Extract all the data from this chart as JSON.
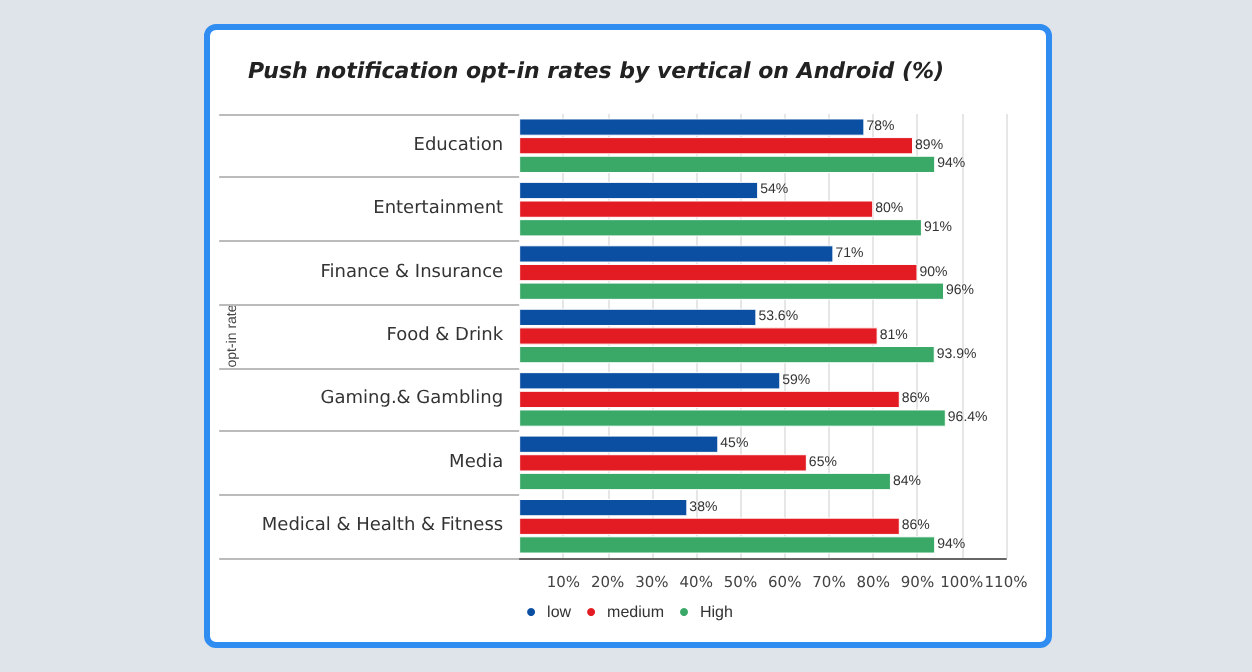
{
  "chart_data": {
    "type": "bar",
    "orientation": "horizontal",
    "title": "Push notification opt-in rates by vertical on Android (%)",
    "ylabel": "opt-in rate",
    "categories": [
      "Education",
      "Entertainment",
      "Finance & Insurance",
      "Food & Drink",
      "Gaming.& Gambling",
      "Media",
      "Medical & Health & Fitness"
    ],
    "series": [
      {
        "name": "low",
        "color": "#0b4fa2",
        "values": [
          78,
          54,
          71,
          53.6,
          59,
          45,
          38
        ],
        "value_labels": [
          "78%",
          "54%",
          "71%",
          "53.6%",
          "59%",
          "45%",
          "38%"
        ]
      },
      {
        "name": "medium",
        "color": "#e31b23",
        "values": [
          89,
          80,
          90,
          81,
          86,
          65,
          86
        ],
        "value_labels": [
          "89%",
          "80%",
          "90%",
          "81%",
          "86%",
          "65%",
          "86%"
        ]
      },
      {
        "name": "High",
        "color": "#3aa866",
        "values": [
          94,
          91,
          96,
          93.9,
          96.4,
          84,
          94
        ],
        "value_labels": [
          "94%",
          "91%",
          "96%",
          "93.9%",
          "96.4%",
          "84%",
          "94%"
        ]
      }
    ],
    "xlim": [
      0,
      110
    ],
    "xticks": [
      {
        "value": 10,
        "label": "10%"
      },
      {
        "value": 20,
        "label": "20%"
      },
      {
        "value": 30,
        "label": "30%"
      },
      {
        "value": 40,
        "label": "40%"
      },
      {
        "value": 50,
        "label": "50%"
      },
      {
        "value": 60,
        "label": "60%"
      },
      {
        "value": 70,
        "label": "70%"
      },
      {
        "value": 80,
        "label": "80%"
      },
      {
        "value": 90,
        "label": "90%"
      },
      {
        "value": 100,
        "label": "100%"
      },
      {
        "value": 110,
        "label": "110%"
      }
    ],
    "grid": "x",
    "legend": "bottom"
  }
}
